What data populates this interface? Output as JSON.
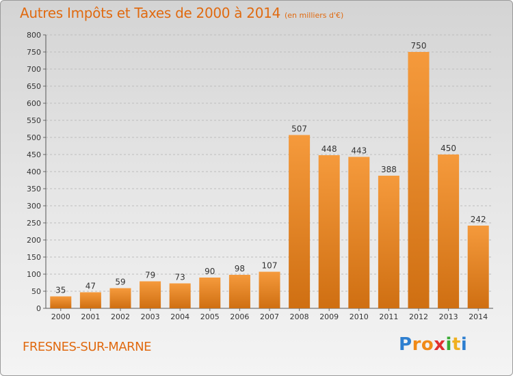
{
  "chart_data": {
    "type": "bar",
    "title": "Autres Impôts et Taxes de 2000 à 2014",
    "unit_note": "(en milliers d'€)",
    "categories": [
      "2000",
      "2001",
      "2002",
      "2003",
      "2004",
      "2005",
      "2006",
      "2007",
      "2008",
      "2009",
      "2010",
      "2011",
      "2012",
      "2013",
      "2014"
    ],
    "values": [
      35,
      47,
      59,
      79,
      73,
      90,
      98,
      107,
      507,
      448,
      443,
      388,
      750,
      450,
      242
    ],
    "ylim": [
      0,
      800
    ],
    "yticks": [
      0,
      50,
      100,
      150,
      200,
      250,
      300,
      350,
      400,
      450,
      500,
      550,
      600,
      650,
      700,
      750,
      800
    ],
    "grid": true,
    "bar_color": "#f59a3c",
    "bar_shade": "#cf6f12"
  },
  "footer": {
    "city": "FRESNES-SUR-MARNE",
    "logo_letters": [
      "P",
      "r",
      "o",
      "x",
      "i",
      "t",
      "i"
    ],
    "logo_colors": [
      "#2e7fd0",
      "#f08a18",
      "#f08a18",
      "#e03030",
      "#3aaa35",
      "#f0b020",
      "#2e7fd0"
    ]
  }
}
